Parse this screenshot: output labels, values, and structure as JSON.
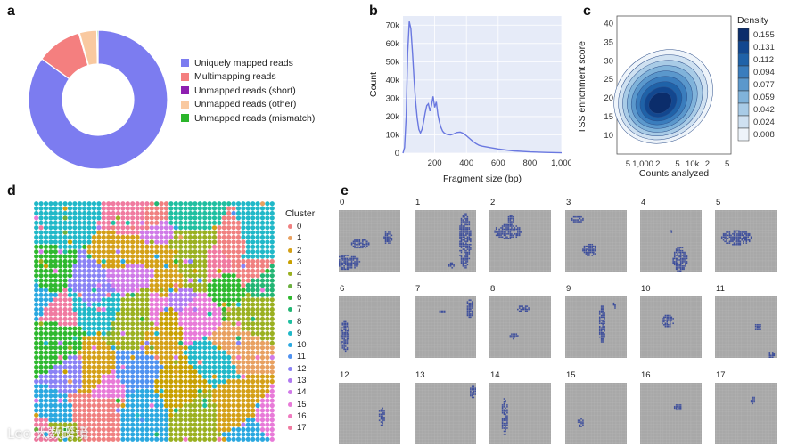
{
  "panels": {
    "a": "a",
    "b": "b",
    "c": "c",
    "d": "d",
    "e": "e"
  },
  "chart_data": [
    {
      "type": "pie",
      "id": "a",
      "labels": [
        "Uniquely mapped reads",
        "Multimapping reads",
        "Unmapped reads (short)",
        "Unmapped reads (other)",
        "Unmapped reads (mismatch)"
      ],
      "values": [
        85.0,
        10.5,
        0.2,
        4.0,
        0.3
      ],
      "colors": [
        "#7c7cf0",
        "#f47f7f",
        "#8e1fb0",
        "#f9c9a0",
        "#2bb52b"
      ]
    },
    {
      "type": "line",
      "id": "b",
      "xlabel": "Fragment size (bp)",
      "ylabel": "Count",
      "xlim": [
        0,
        1000
      ],
      "ylim": [
        0,
        75000
      ],
      "xticks": [
        200,
        400,
        600,
        800,
        1000
      ],
      "xtick_labels": [
        "200",
        "400",
        "600",
        "800",
        "1,000"
      ],
      "yticks": [
        0,
        10000,
        20000,
        30000,
        40000,
        50000,
        60000,
        70000
      ],
      "ytick_labels": [
        "0",
        "10k",
        "20k",
        "30k",
        "40k",
        "50k",
        "60k",
        "70k"
      ],
      "x": [
        0,
        10,
        20,
        30,
        40,
        50,
        60,
        70,
        80,
        90,
        100,
        110,
        120,
        130,
        140,
        150,
        160,
        170,
        180,
        190,
        200,
        210,
        220,
        230,
        240,
        250,
        260,
        270,
        280,
        300,
        320,
        340,
        360,
        380,
        400,
        420,
        440,
        460,
        480,
        500,
        550,
        600,
        650,
        700,
        800,
        900,
        1000
      ],
      "y": [
        0,
        3000,
        20000,
        55000,
        72000,
        68000,
        55000,
        40000,
        28000,
        19000,
        13000,
        11000,
        13000,
        17000,
        22000,
        26000,
        27000,
        23000,
        26000,
        31000,
        25000,
        28000,
        21000,
        17000,
        14000,
        12000,
        11000,
        10500,
        10200,
        10000,
        10500,
        11300,
        11500,
        10800,
        9500,
        8000,
        6500,
        5200,
        4300,
        3800,
        3000,
        2300,
        1700,
        1200,
        700,
        400,
        200
      ]
    },
    {
      "type": "heatmap",
      "id": "c",
      "subtype": "2d-density-contour",
      "xlabel": "Counts analyzed",
      "ylabel": "TSS enrichment score",
      "x_scale": "log",
      "xlim": [
        300,
        60000
      ],
      "ylim": [
        5,
        42
      ],
      "xtick_labels": [
        "5",
        "1,000",
        "2",
        "5",
        "10k",
        "2",
        "5"
      ],
      "yticks": [
        10,
        15,
        20,
        25,
        30,
        35,
        40
      ],
      "ytick_labels": [
        "10",
        "15",
        "20",
        "25",
        "30",
        "35",
        "40"
      ],
      "peak": {
        "x": 2200,
        "y": 18.5
      },
      "legend_title": "Density",
      "legend_values": [
        0.155,
        0.131,
        0.112,
        0.094,
        0.077,
        0.059,
        0.042,
        0.024,
        0.008
      ],
      "legend_labels": [
        "0.155",
        "0.131",
        "0.112",
        "0.094",
        "0.077",
        "0.059",
        "0.042",
        "0.024",
        "0.008"
      ]
    },
    {
      "type": "scatter",
      "id": "d",
      "subtype": "spatial-cluster-map",
      "legend_title": "Cluster",
      "clusters": [
        "0",
        "1",
        "2",
        "3",
        "4",
        "5",
        "6",
        "7",
        "8",
        "9",
        "10",
        "11",
        "12",
        "13",
        "14",
        "15",
        "16",
        "17"
      ],
      "cluster_colors": [
        "#f08080",
        "#e8a060",
        "#d4a017",
        "#c8a000",
        "#9ab020",
        "#6cb040",
        "#2eb82e",
        "#22b573",
        "#1fbfa0",
        "#20b8c8",
        "#2aa8e0",
        "#4f92f0",
        "#8a82f5",
        "#b07af0",
        "#d07ae8",
        "#e87ad8",
        "#f07ac0",
        "#f07aa0"
      ]
    },
    {
      "type": "heatmap",
      "id": "e",
      "subtype": "per-cluster-spatial-maps",
      "titles": [
        "0",
        "1",
        "2",
        "3",
        "4",
        "5",
        "6",
        "7",
        "8",
        "9",
        "10",
        "11",
        "12",
        "13",
        "14",
        "15",
        "16",
        "17"
      ],
      "background_color": "#a8a8a8",
      "highlight_color": "#3c4d9a"
    }
  ],
  "watermark": "Leo 大数跨境"
}
